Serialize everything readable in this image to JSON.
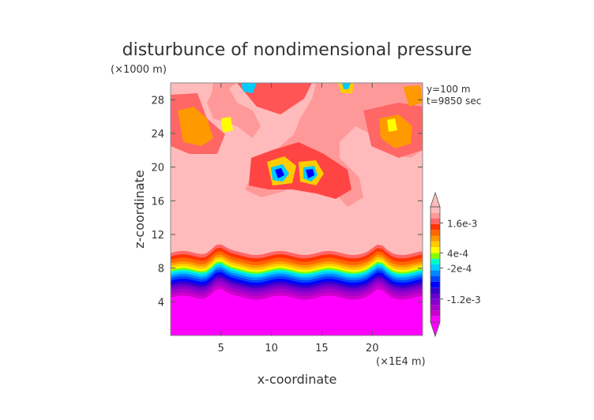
{
  "chart_data": {
    "type": "heatmap",
    "title": "disturbunce of nondimensional pressure",
    "xlabel": "x-coordinate",
    "ylabel": "z-coordinate",
    "x_unit": "(×1E4 m)",
    "y_unit": "(×1000 m)",
    "annotations": [
      "y=100 m",
      "t=9850 sec"
    ],
    "xlim": [
      0,
      25
    ],
    "ylim": [
      0,
      30
    ],
    "x_ticks": [
      5,
      10,
      15,
      20
    ],
    "y_ticks": [
      4,
      8,
      12,
      16,
      20,
      24,
      28
    ],
    "colorbar": {
      "tick_labels": [
        "1.6e-3",
        "4e-4",
        "-2e-4",
        "-1.2e-3"
      ],
      "levels": [
        "#ff00ff",
        "#cc00cc",
        "#aa00cc",
        "#8800cc",
        "#6600cc",
        "#3300cc",
        "#0000ff",
        "#0044ff",
        "#0088ff",
        "#00ccff",
        "#00ffcc",
        "#88ff00",
        "#ffff00",
        "#ffcc00",
        "#ff9900",
        "#ff6600",
        "#ff3300",
        "#ff6666",
        "#ff9999",
        "#ffbbbb"
      ]
    },
    "background_color": "#ffbbbb"
  }
}
